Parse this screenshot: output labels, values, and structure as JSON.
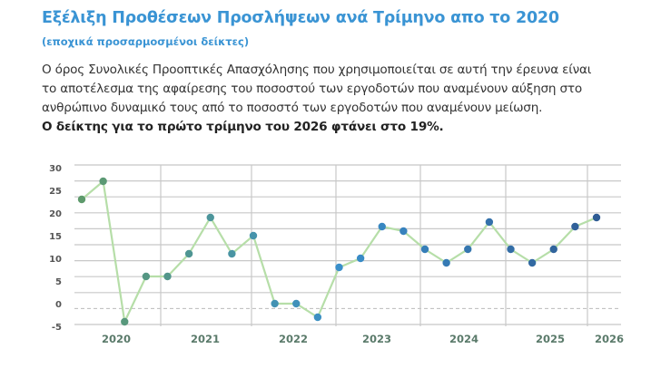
{
  "header": {
    "title": "Εξέλιξη Προθέσεων Προσλήψεων ανά Τρίμηνο απο το 2020",
    "subtitle": "(εποχικά προσαρμοσμένοι δείκτες)"
  },
  "description": {
    "lines": [
      "Ο όρος Συνολικές Προοπτικές Απασχόλησης που χρησιμοποιείται σε αυτή την έρευνα είναι",
      "το αποτέλεσμα της αφαίρεσης του ποσοστού των εργοδοτών που αναμένουν αύξηση στο",
      "ανθρώπινο δυναμικό τους από το ποσοστό των εργοδοτών που αναμένουν μείωση."
    ],
    "highlight": "Ο δείκτης για το πρώτο τρίμηνο του 2026  φτάνει στο 19%."
  },
  "chart_data": {
    "type": "line",
    "title": "",
    "xlabel": "",
    "ylabel": "",
    "ylim": [
      -5,
      30
    ],
    "yticks": [
      "30",
      "25",
      "20",
      "15",
      "10",
      "5",
      "0",
      "-5"
    ],
    "ytick_values": [
      30,
      25,
      20,
      15,
      10,
      5,
      0,
      -5
    ],
    "year_labels": [
      "2020",
      "2021",
      "2022",
      "2023",
      "2024",
      "2025",
      "2026"
    ],
    "grid": true,
    "zero_line": "dashed",
    "x": [
      "2019 Q3",
      "2019 Q4",
      "2020 Q1",
      "2020 Q2",
      "2020 Q3",
      "2020 Q4",
      "2021 Q1",
      "2021 Q2",
      "2021 Q3",
      "2021 Q4",
      "2022 Q1",
      "2022 Q2",
      "2022 Q3",
      "2022 Q4",
      "2023 Q1",
      "2023 Q2",
      "2023 Q3",
      "2023 Q4",
      "2024 Q1",
      "2024 Q2",
      "2024 Q3",
      "2024 Q4",
      "2025 Q1",
      "2025 Q2",
      "2026 Q1"
    ],
    "values": [
      23,
      27,
      -4,
      6,
      6,
      11,
      19,
      11,
      15,
      0,
      0,
      -3,
      8,
      10,
      17,
      16,
      12,
      9,
      12,
      18,
      12,
      9,
      12,
      17,
      19
    ],
    "colors": {
      "line": "#b6dea8",
      "marker_start": "#5e9a6c",
      "marker_mid": "#3a8fca",
      "marker_end": "#2f5c94",
      "grid": "#c8c8c8",
      "title": "#3a94d4"
    }
  }
}
